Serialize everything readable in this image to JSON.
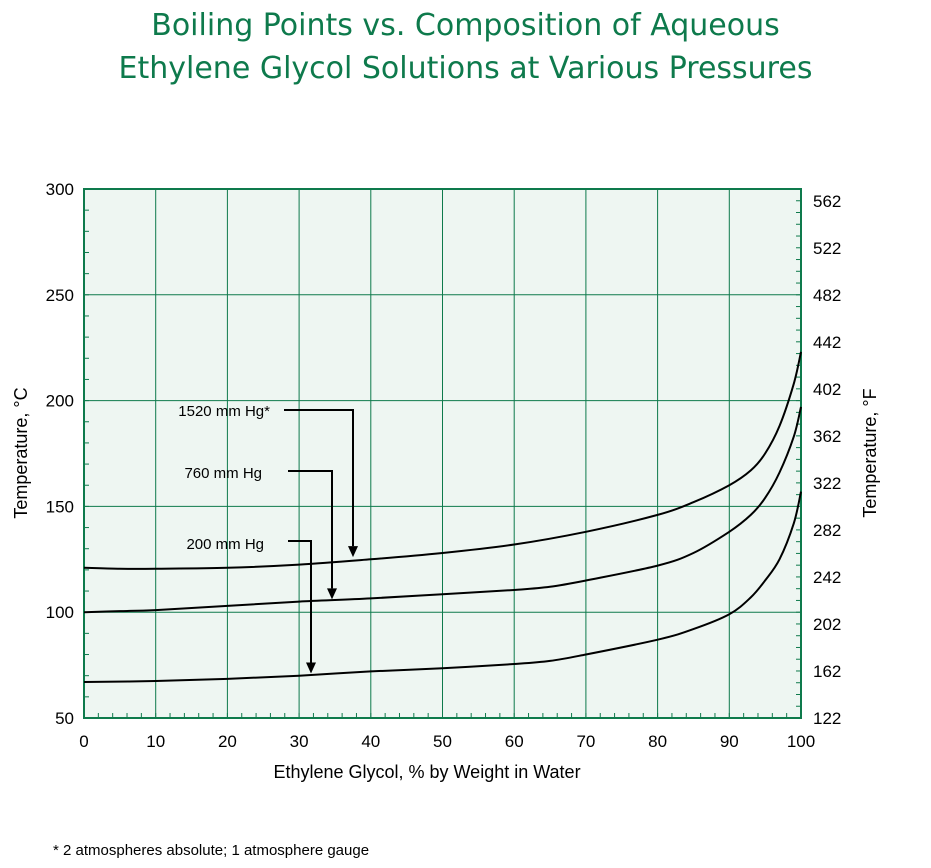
{
  "title": {
    "line1": "Boiling Points vs. Composition of Aqueous",
    "line2": "Ethylene Glycol Solutions at Various Pressures"
  },
  "footnote": "* 2 atmospheres absolute; 1 atmosphere gauge",
  "colors": {
    "title": "#0e7a4c",
    "grid": "#0e7a4c",
    "plot_bg": "#eef6f2",
    "curve": "#000000"
  },
  "chart_data": {
    "type": "line",
    "xlabel": "Ethylene Glycol, % by Weight in Water",
    "ylabel": "Temperature, °C",
    "y2label": "Temperature, °F",
    "xlim": [
      0,
      100
    ],
    "ylim": [
      50,
      300
    ],
    "x_ticks": [
      0,
      10,
      20,
      30,
      40,
      50,
      60,
      70,
      80,
      90,
      100
    ],
    "y_ticks": [
      50,
      100,
      150,
      200,
      250,
      300
    ],
    "y2_ticks": [
      122,
      162,
      202,
      242,
      282,
      322,
      362,
      402,
      442,
      482,
      522,
      562
    ],
    "grid": true,
    "series": [
      {
        "name": "1520 mm Hg*",
        "label_point": [
          38,
          127
        ],
        "x": [
          0,
          5,
          10,
          20,
          30,
          40,
          50,
          60,
          70,
          80,
          85,
          90,
          93,
          95,
          97,
          99,
          100
        ],
        "y": [
          121,
          120.5,
          120.5,
          121,
          122.5,
          125,
          128,
          132,
          138,
          146,
          152,
          160,
          167,
          175,
          188,
          208,
          223
        ]
      },
      {
        "name": "760 mm Hg",
        "label_point": [
          35,
          107
        ],
        "x": [
          0,
          5,
          10,
          20,
          30,
          40,
          50,
          60,
          65,
          70,
          80,
          85,
          90,
          93,
          95,
          97,
          99,
          100
        ],
        "y": [
          100,
          100.5,
          101,
          103,
          105,
          106.5,
          108.5,
          110.5,
          112,
          115,
          122,
          128,
          138,
          146,
          154,
          166,
          183,
          197
        ]
      },
      {
        "name": "200 mm Hg",
        "label_point": [
          32,
          72
        ],
        "x": [
          0,
          10,
          20,
          30,
          40,
          50,
          60,
          65,
          70,
          80,
          85,
          90,
          93,
          95,
          97,
          99,
          100
        ],
        "y": [
          67,
          67.5,
          68.5,
          70,
          72,
          73.5,
          75.5,
          77,
          80,
          87,
          92,
          99,
          107,
          115,
          125,
          142,
          157
        ]
      }
    ]
  }
}
